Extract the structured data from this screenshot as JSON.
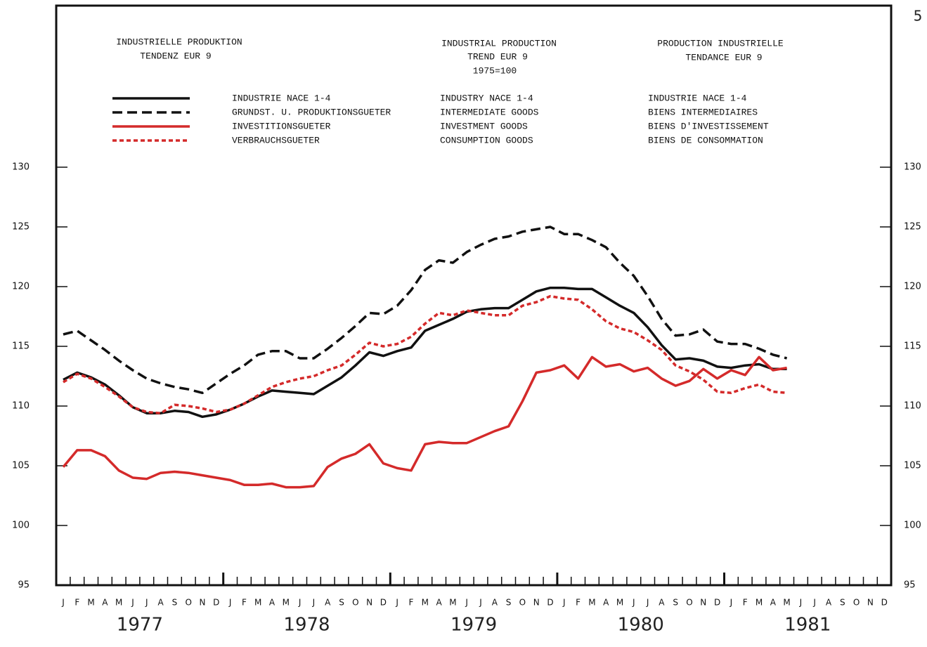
{
  "chart_data": {
    "type": "line",
    "page_number": "5",
    "title_de": [
      "INDUSTRIELLE PRODUKTION",
      "TENDENZ  EUR 9"
    ],
    "title_en": [
      "INDUSTRIAL PRODUCTION",
      "TREND EUR 9",
      "1975=100"
    ],
    "title_fr": [
      "PRODUCTION INDUSTRIELLE",
      "TENDANCE EUR 9"
    ],
    "categories": [
      "J",
      "F",
      "M",
      "A",
      "M",
      "J",
      "J",
      "A",
      "S",
      "O",
      "N",
      "D",
      "J",
      "F",
      "M",
      "A",
      "M",
      "J",
      "J",
      "A",
      "S",
      "O",
      "N",
      "D",
      "J",
      "F",
      "M",
      "A",
      "M",
      "J",
      "J",
      "A",
      "S",
      "O",
      "N",
      "D",
      "J",
      "F",
      "M",
      "A",
      "M",
      "J",
      "J",
      "A",
      "S",
      "O",
      "N",
      "D",
      "J",
      "F",
      "M",
      "A",
      "M",
      "J",
      "J",
      "A",
      "S",
      "O",
      "N",
      "D"
    ],
    "years": [
      "1977",
      "1978",
      "1979",
      "1980",
      "1981"
    ],
    "ylim": [
      95,
      130
    ],
    "yticks": [
      95,
      100,
      105,
      110,
      115,
      120,
      125,
      130
    ],
    "series": [
      {
        "name": "INDUSTRIE NACE 1-4",
        "name_en": "INDUSTRY NACE 1-4",
        "name_fr": "INDUSTRIE NACE 1-4",
        "color": "#111111",
        "dash": "solid",
        "values": [
          112.2,
          112.8,
          112.4,
          111.8,
          110.9,
          109.9,
          109.4,
          109.4,
          109.6,
          109.5,
          109.1,
          109.3,
          109.7,
          110.2,
          110.8,
          111.3,
          111.2,
          111.1,
          111.0,
          111.7,
          112.4,
          113.4,
          114.5,
          114.2,
          114.6,
          114.9,
          116.3,
          116.8,
          117.3,
          117.9,
          118.1,
          118.2,
          118.2,
          118.9,
          119.6,
          119.9,
          119.9,
          119.8,
          119.8,
          119.1,
          118.4,
          117.8,
          116.6,
          115.1,
          113.9,
          114.0,
          113.8,
          113.3,
          113.2,
          113.4,
          113.5,
          113.1,
          113.1,
          null,
          null,
          null,
          null,
          null,
          null,
          null
        ]
      },
      {
        "name": "GRUNDST. U. PRODUKTIONSGUETER",
        "name_en": "INTERMEDIATE GOODS",
        "name_fr": "BIENS INTERMEDIAIRES",
        "color": "#111111",
        "dash": "dashed",
        "values": [
          116.0,
          116.3,
          115.5,
          114.7,
          113.8,
          113.0,
          112.3,
          111.9,
          111.6,
          111.4,
          111.1,
          111.9,
          112.7,
          113.4,
          114.3,
          114.6,
          114.6,
          114.0,
          114.0,
          114.8,
          115.7,
          116.7,
          117.8,
          117.7,
          118.4,
          119.7,
          121.4,
          122.2,
          122.0,
          122.9,
          123.5,
          124.0,
          124.2,
          124.6,
          124.8,
          125.0,
          124.4,
          124.4,
          123.9,
          123.3,
          122.0,
          120.9,
          119.2,
          117.3,
          115.9,
          116.0,
          116.4,
          115.4,
          115.2,
          115.2,
          114.8,
          114.3,
          114.0,
          null,
          null,
          null,
          null,
          null,
          null,
          null
        ]
      },
      {
        "name": "INVESTITIONSGUETER",
        "name_en": "INVESTMENT GOODS",
        "name_fr": "BIENS D'INVESTISSEMENT",
        "color": "#d42a2a",
        "dash": "solid",
        "values": [
          104.9,
          106.3,
          106.3,
          105.8,
          104.6,
          104.0,
          103.9,
          104.4,
          104.5,
          104.4,
          104.2,
          104.0,
          103.8,
          103.4,
          103.4,
          103.5,
          103.2,
          103.2,
          103.3,
          104.9,
          105.6,
          106.0,
          106.8,
          105.2,
          104.8,
          104.6,
          106.8,
          107.0,
          106.9,
          106.9,
          107.4,
          107.9,
          108.3,
          110.4,
          112.8,
          113.0,
          113.4,
          112.3,
          114.1,
          113.3,
          113.5,
          112.9,
          113.2,
          112.3,
          111.7,
          112.1,
          113.1,
          112.3,
          113.0,
          112.6,
          114.1,
          113.0,
          113.2,
          null,
          null,
          null,
          null,
          null,
          null,
          null
        ]
      },
      {
        "name": "VERBRAUCHSGUETER",
        "name_en": "CONSUMPTION GOODS",
        "name_fr": "BIENS DE CONSOMMATION",
        "color": "#d42a2a",
        "dash": "dotted",
        "values": [
          112.0,
          112.7,
          112.3,
          111.6,
          110.8,
          109.9,
          109.5,
          109.4,
          110.1,
          110.0,
          109.8,
          109.5,
          109.7,
          110.2,
          110.9,
          111.6,
          112.0,
          112.3,
          112.5,
          113.0,
          113.4,
          114.3,
          115.3,
          115.0,
          115.2,
          115.8,
          116.9,
          117.8,
          117.6,
          118.0,
          117.8,
          117.6,
          117.6,
          118.4,
          118.7,
          119.2,
          119.0,
          118.9,
          118.1,
          117.1,
          116.5,
          116.2,
          115.5,
          114.7,
          113.4,
          112.9,
          112.2,
          111.2,
          111.1,
          111.5,
          111.8,
          111.2,
          111.1,
          null,
          null,
          null,
          null,
          null,
          null,
          null
        ]
      }
    ]
  }
}
